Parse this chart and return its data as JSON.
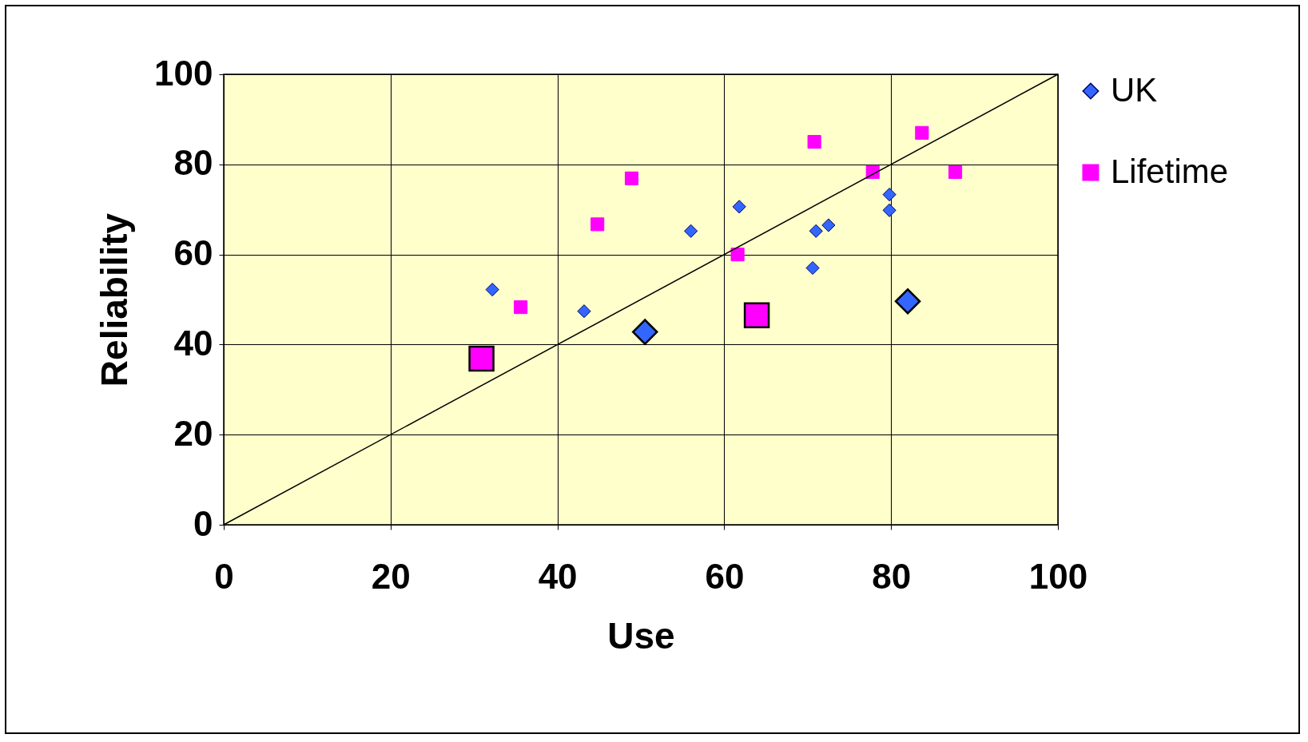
{
  "chart_data": {
    "type": "scatter",
    "xlabel": "Use",
    "ylabel": "Reliability",
    "xlim": [
      0,
      100
    ],
    "ylim": [
      0,
      100
    ],
    "xticks": [
      0,
      20,
      40,
      60,
      80,
      100
    ],
    "yticks": [
      0,
      20,
      40,
      60,
      80,
      100
    ],
    "grid": true,
    "legend": "right",
    "series": [
      {
        "name": "UK",
        "color": "#3366ff",
        "marker": "diamond",
        "x": [
          32.2,
          43.2,
          56,
          61.8,
          70.6,
          71,
          72.5,
          79.8,
          79.8
        ],
        "values": [
          52.2,
          47.4,
          65.2,
          70.6,
          57,
          65.2,
          66.5,
          73.3,
          69.8
        ]
      },
      {
        "name": "Lifetime",
        "color": "#ff00ff",
        "marker": "square",
        "x": [
          35.6,
          44.8,
          48.9,
          61.6,
          70.8,
          77.8,
          83.7,
          87.7
        ],
        "values": [
          48.3,
          66.7,
          76.9,
          60,
          85,
          78.3,
          87,
          78.3
        ]
      },
      {
        "color": "#3366ff",
        "marker": "diamond",
        "x": [
          50.5,
          82
        ],
        "values": [
          42.8,
          49.6
        ]
      },
      {
        "color": "#ff00ff",
        "marker": "square",
        "x": [
          30.9,
          63.9
        ],
        "values": [
          36.9,
          46.5
        ]
      },
      {
        "type": "line",
        "color": "#000000",
        "x": [
          0,
          100
        ],
        "values": [
          0,
          100
        ]
      }
    ]
  }
}
